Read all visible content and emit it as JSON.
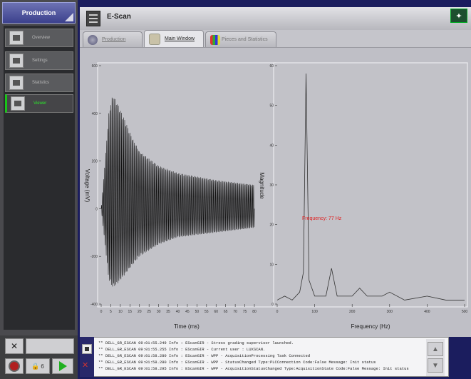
{
  "sidebar": {
    "header": "Production",
    "items": [
      {
        "label": "Overview",
        "icon": "overview-icon"
      },
      {
        "label": "Settings",
        "icon": "settings-icon"
      },
      {
        "label": "Statistics",
        "icon": "statistics-icon"
      },
      {
        "label": "Viewer",
        "icon": "viewer-icon",
        "active": true
      }
    ]
  },
  "window": {
    "title": "E-Scan",
    "tabs": [
      {
        "label": "Production",
        "active": false
      },
      {
        "label": "Main Window",
        "active": true
      },
      {
        "label": "Pieces and Statistics",
        "active": false
      }
    ]
  },
  "controls": {
    "lock_count": "6"
  },
  "chart_data": [
    {
      "type": "line",
      "xlabel": "Time (ms)",
      "ylabel": "Voltage (mV)",
      "xlim": [
        0,
        80
      ],
      "ylim": [
        -400,
        600
      ],
      "xticks": [
        0,
        5,
        10,
        15,
        20,
        25,
        30,
        35,
        40,
        45,
        50,
        55,
        60,
        65,
        70,
        75,
        80
      ],
      "yticks": [
        -400,
        -200,
        0,
        200,
        400,
        600
      ],
      "x": [
        0,
        4,
        6,
        8,
        12,
        16,
        20,
        30,
        40,
        60,
        80
      ],
      "series": [
        {
          "name": "",
          "envelope_upper": [
            0,
            400,
            480,
            450,
            380,
            300,
            240,
            180,
            150,
            120,
            100
          ],
          "envelope_lower": [
            0,
            -300,
            -330,
            -320,
            -280,
            -240,
            -200,
            -150,
            -120,
            -100,
            -80
          ]
        }
      ]
    },
    {
      "type": "line",
      "xlabel": "Frequency (Hz)",
      "ylabel": "Magnitude",
      "xlim": [
        0,
        500
      ],
      "ylim": [
        0,
        60
      ],
      "xticks": [
        0,
        100,
        200,
        300,
        400,
        500
      ],
      "yticks": [
        0,
        10,
        20,
        30,
        40,
        50,
        60
      ],
      "annotation": "Frequency: 77 Hz",
      "x": [
        0,
        20,
        40,
        60,
        70,
        77,
        85,
        100,
        130,
        145,
        160,
        200,
        220,
        240,
        280,
        300,
        340,
        400,
        450,
        500
      ],
      "series": [
        {
          "name": "",
          "values": [
            1,
            2,
            1,
            3,
            8,
            58,
            6,
            2,
            2,
            9,
            2,
            2,
            4,
            2,
            2,
            3,
            1,
            2,
            1,
            1
          ]
        }
      ]
    }
  ],
  "log": {
    "lines": [
      "** DELL_GR_ESCAN 09:01:55.249 Info : EScanGIR - Stress grading supervisor launched.",
      "** DELL_GR_ESCAN 09:01:55.255 Info : EScanGIR - Current user : LUXSCAN.",
      "** DELL_GR_ESCAN 09:01:58.280 Info : EScanGIR - WPP - AcquisitionProcessing Task Connected",
      "** DELL_GR_ESCAN 09:01:58.280 Info : EScanGIR - WPP - StatusChanged Type:PLCConnection Code:False Message: Init status",
      "** DELL_GR_ESCAN 09:01:58.295 Info : EScanGIR - WPP - AcquisitionStatusChanged Type:AcquisitionState Code:False Message: Init status"
    ]
  }
}
